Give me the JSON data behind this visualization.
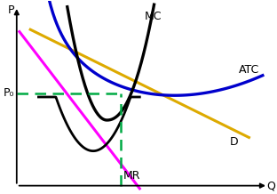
{
  "bg_color": "#ffffff",
  "MC_label": "MC",
  "ATC_label": "ATC",
  "D_label": "D",
  "MR_label": "MR",
  "P0_label": "P₀",
  "P_label": "P",
  "Q_label": "Q",
  "MC_color": "#000000",
  "ATC_color": "#0000cc",
  "D_color": "#ddaa00",
  "MR_color": "#000000",
  "magenta_color": "#ff00ff",
  "dashed_color": "#00aa44",
  "ax_color": "#000000",
  "xlim": [
    0,
    10
  ],
  "ylim": [
    0,
    10
  ],
  "P0_y": 5.2,
  "Q0_x": 4.3
}
